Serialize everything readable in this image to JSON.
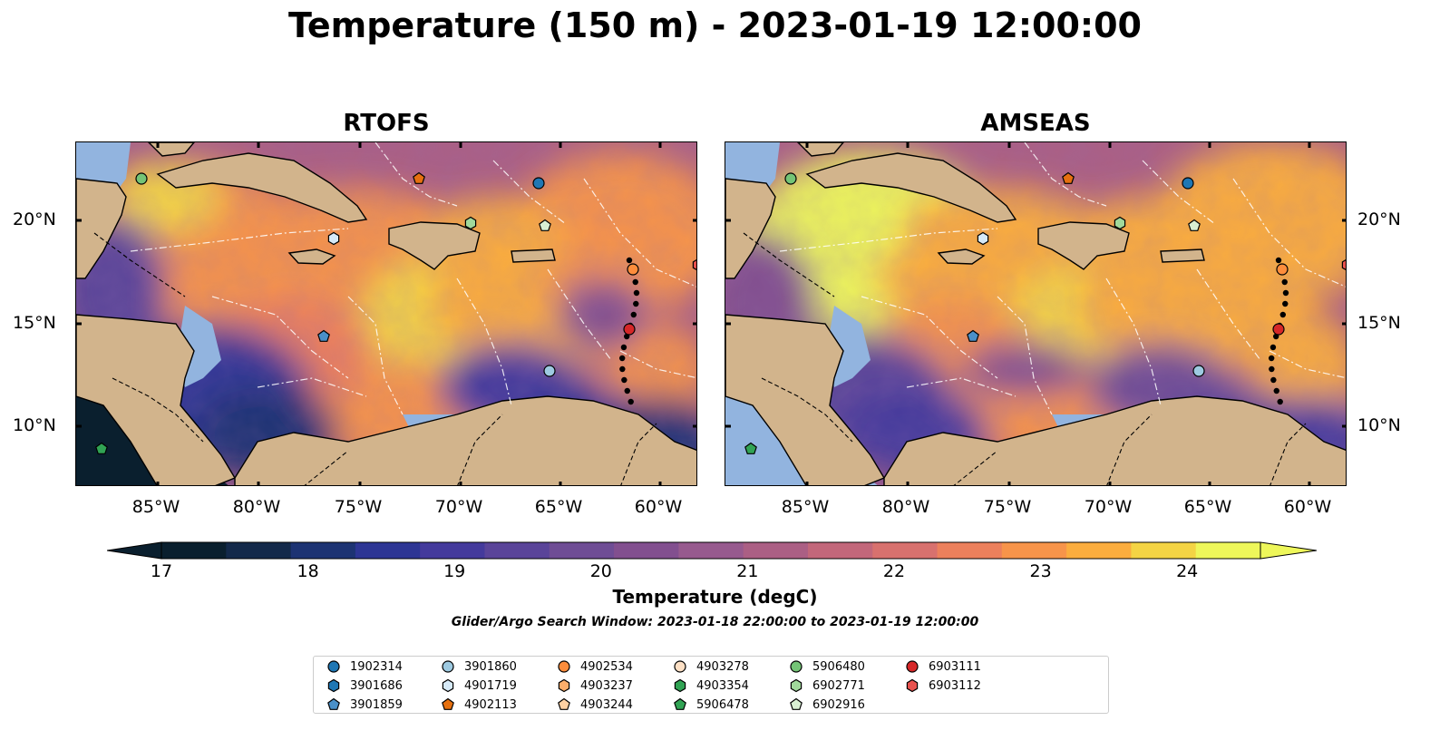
{
  "title": "Temperature (150 m) - 2023-01-19 12:00:00",
  "panels": [
    {
      "name": "RTOFS"
    },
    {
      "name": "AMSEAS"
    }
  ],
  "axes": {
    "lat_labels": [
      "20°N",
      "15°N",
      "10°N"
    ],
    "lon_labels": [
      "85°W",
      "80°W",
      "75°W",
      "70°W",
      "65°W",
      "60°W"
    ]
  },
  "colorbar": {
    "label": "Temperature (degC)",
    "ticks": [
      "17",
      "18",
      "19",
      "20",
      "21",
      "22",
      "23",
      "24"
    ],
    "min": 17,
    "max": 24.5,
    "step": 0.5,
    "extend": "both",
    "colors": [
      "#0a1f2e",
      "#13294a",
      "#1d3373",
      "#2d3594",
      "#443a9c",
      "#5a4499",
      "#6f4d95",
      "#824f8f",
      "#975a8e",
      "#ab5f84",
      "#c2677a",
      "#d8716e",
      "#ec805c",
      "#f7944a",
      "#fbad3e",
      "#f4d444",
      "#eef75a"
    ]
  },
  "subtitle": "Glider/Argo Search Window: 2023-01-18 22:00:00 to 2023-01-19 12:00:00",
  "legend": [
    {
      "id": "1902314",
      "color": "#1f77b4",
      "shape": "circle"
    },
    {
      "id": "3901686",
      "color": "#1f77b4",
      "shape": "hexagon"
    },
    {
      "id": "3901859",
      "color": "#4a90c8",
      "shape": "pentagon"
    },
    {
      "id": "3901860",
      "color": "#9ecae1",
      "shape": "circle"
    },
    {
      "id": "4901719",
      "color": "#d6eaf8",
      "shape": "hexagon"
    },
    {
      "id": "4902113",
      "color": "#e6700f",
      "shape": "pentagon"
    },
    {
      "id": "4902534",
      "color": "#fd8d3c",
      "shape": "circle"
    },
    {
      "id": "4903237",
      "color": "#fdae6b",
      "shape": "hexagon"
    },
    {
      "id": "4903244",
      "color": "#fdd0a2",
      "shape": "pentagon"
    },
    {
      "id": "4903278",
      "color": "#fde0c5",
      "shape": "circle"
    },
    {
      "id": "4903354",
      "color": "#31a354",
      "shape": "hexagon"
    },
    {
      "id": "5906478",
      "color": "#31a354",
      "shape": "pentagon"
    },
    {
      "id": "5906480",
      "color": "#74c476",
      "shape": "circle"
    },
    {
      "id": "6902771",
      "color": "#a1d99b",
      "shape": "hexagon"
    },
    {
      "id": "6902916",
      "color": "#d9f0d3",
      "shape": "pentagon"
    },
    {
      "id": "6903111",
      "color": "#d62728",
      "shape": "circle"
    },
    {
      "id": "6903112",
      "color": "#e8524e",
      "shape": "hexagon"
    }
  ],
  "map_colors": {
    "land": "#d2b48c",
    "shelf": "#92b4df",
    "border": "#000000"
  }
}
